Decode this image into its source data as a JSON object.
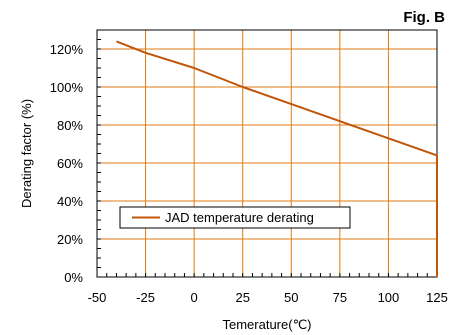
{
  "figure_label": "Fig. B",
  "chart_data": {
    "type": "line",
    "title": "",
    "xlabel": "Temerature(℃)",
    "ylabel": "Derating factor (%)",
    "xlim": [
      -50,
      125
    ],
    "ylim": [
      0,
      130
    ],
    "x_ticks": [
      -50,
      -25,
      0,
      25,
      50,
      75,
      100,
      125
    ],
    "y_ticks": [
      0,
      20,
      40,
      60,
      80,
      100,
      120
    ],
    "y_tick_labels": [
      "0%",
      "20%",
      "40%",
      "60%",
      "80%",
      "100%",
      "120%"
    ],
    "grid": true,
    "legend_position": "lower-left",
    "colors": {
      "series": "#c0560a",
      "grid": "#e07a10",
      "axis": "#000000"
    },
    "series": [
      {
        "name": "JAD temperature derating",
        "x": [
          -40,
          -25,
          0,
          25,
          50,
          75,
          100,
          125,
          125
        ],
        "y": [
          124,
          118,
          110,
          100,
          91,
          82,
          73,
          64,
          0
        ]
      }
    ]
  }
}
